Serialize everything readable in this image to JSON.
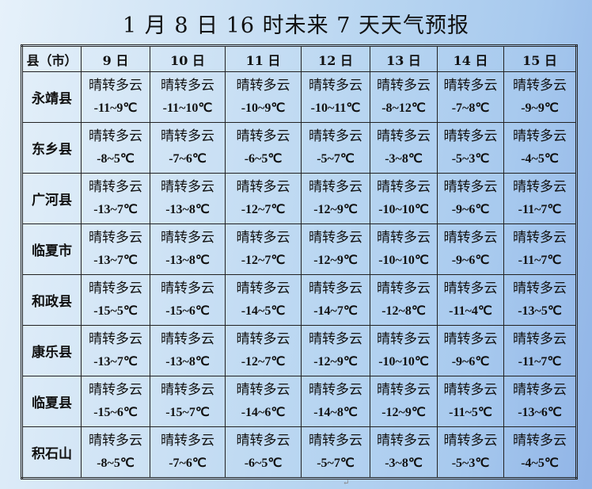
{
  "title": "1 月 8 日 16 时未来 7 天天气预报",
  "header": {
    "county_label": "县（市）",
    "days": [
      "9 日",
      "10 日",
      "11 日",
      "12 日",
      "13 日",
      "14 日",
      "15 日"
    ]
  },
  "rows": [
    {
      "county": "永靖县",
      "weather": [
        "晴转多云",
        "晴转多云",
        "晴转多云",
        "晴转多云",
        "晴转多云",
        "晴转多云",
        "晴转多云"
      ],
      "temps": [
        "-11~9℃",
        "-11~10℃",
        "-10~9℃",
        "-10~11℃",
        "-8~12℃",
        "-7~8℃",
        "-9~9℃"
      ]
    },
    {
      "county": "东乡县",
      "weather": [
        "晴转多云",
        "晴转多云",
        "晴转多云",
        "晴转多云",
        "晴转多云",
        "晴转多云",
        "晴转多云"
      ],
      "temps": [
        "-8~5℃",
        "-7~6℃",
        "-6~5℃",
        "-5~7℃",
        "-3~8℃",
        "-5~3℃",
        "-4~5℃"
      ]
    },
    {
      "county": "广河县",
      "weather": [
        "晴转多云",
        "晴转多云",
        "晴转多云",
        "晴转多云",
        "晴转多云",
        "晴转多云",
        "晴转多云"
      ],
      "temps": [
        "-13~7℃",
        "-13~8℃",
        "-12~7℃",
        "-12~9℃",
        "-10~10℃",
        "-9~6℃",
        "-11~7℃"
      ]
    },
    {
      "county": "临夏市",
      "weather": [
        "晴转多云",
        "晴转多云",
        "晴转多云",
        "晴转多云",
        "晴转多云",
        "晴转多云",
        "晴转多云"
      ],
      "temps": [
        "-13~7℃",
        "-13~8℃",
        "-12~7℃",
        "-12~9℃",
        "-10~10℃",
        "-9~6℃",
        "-11~7℃"
      ]
    },
    {
      "county": "和政县",
      "weather": [
        "晴转多云",
        "晴转多云",
        "晴转多云",
        "晴转多云",
        "晴转多云",
        "晴转多云",
        "晴转多云"
      ],
      "temps": [
        "-15~5℃",
        "-15~6℃",
        "-14~5℃",
        "-14~7℃",
        "-12~8℃",
        "-11~4℃",
        "-13~5℃"
      ]
    },
    {
      "county": "康乐县",
      "weather": [
        "晴转多云",
        "晴转多云",
        "晴转多云",
        "晴转多云",
        "晴转多云",
        "晴转多云",
        "晴转多云"
      ],
      "temps": [
        "-13~7℃",
        "-13~8℃",
        "-12~7℃",
        "-12~9℃",
        "-10~10℃",
        "-9~6℃",
        "-11~7℃"
      ]
    },
    {
      "county": "临夏县",
      "weather": [
        "晴转多云",
        "晴转多云",
        "晴转多云",
        "晴转多云",
        "晴转多云",
        "晴转多云",
        "晴转多云"
      ],
      "temps": [
        "-15~6℃",
        "-15~7℃",
        "-14~6℃",
        "-14~8℃",
        "-12~9℃",
        "-11~5℃",
        "-13~6℃"
      ]
    },
    {
      "county": "积石山",
      "weather": [
        "晴转多云",
        "晴转多云",
        "晴转多云",
        "晴转多云",
        "晴转多云",
        "晴转多云",
        "晴转多云"
      ],
      "temps": [
        "-8~5℃",
        "-7~6℃",
        "-6~5℃",
        "-5~7℃",
        "-3~8℃",
        "-5~3℃",
        "-4~5℃"
      ]
    }
  ]
}
